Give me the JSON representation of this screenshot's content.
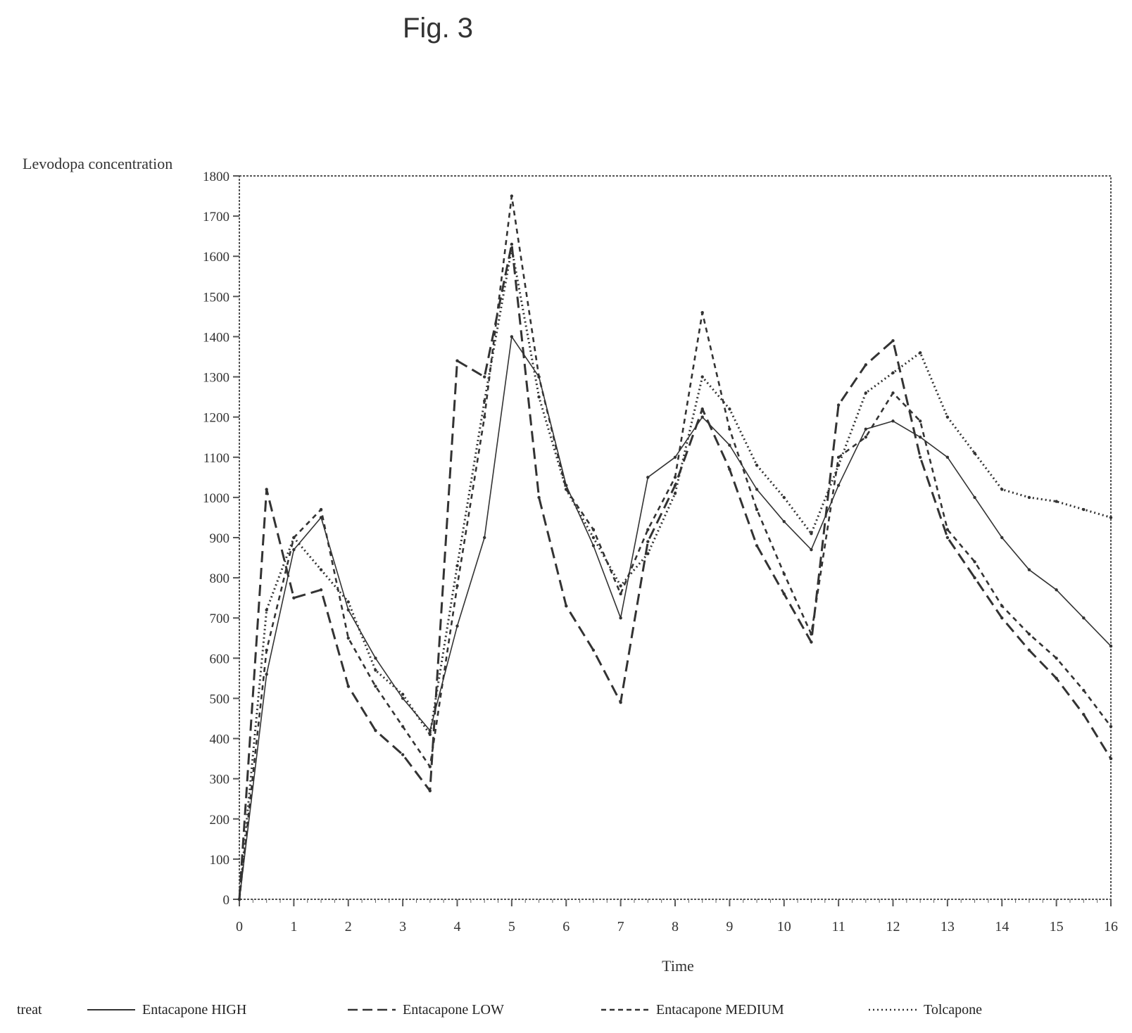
{
  "figure_title": "Fig. 3",
  "legend_heading": "treat",
  "chart_data": {
    "type": "line",
    "title": "",
    "ylabel": "Levodopa concentration",
    "xlabel": "Time",
    "xlim": [
      0,
      16
    ],
    "ylim": [
      0,
      1800
    ],
    "x_ticks": [
      0,
      1,
      2,
      3,
      4,
      5,
      6,
      7,
      8,
      9,
      10,
      11,
      12,
      13,
      14,
      15,
      16
    ],
    "y_ticks": [
      0,
      100,
      200,
      300,
      400,
      500,
      600,
      700,
      800,
      900,
      1000,
      1100,
      1200,
      1300,
      1400,
      1500,
      1600,
      1700,
      1800
    ],
    "grid": false,
    "legend_position": "bottom",
    "series": [
      {
        "name": "Entacapone HIGH",
        "style": "solid",
        "x": [
          0,
          0.5,
          1,
          1.5,
          2,
          2.5,
          3,
          3.5,
          4,
          4.5,
          5,
          5.5,
          6,
          6.5,
          7,
          7.5,
          8,
          8.5,
          9,
          9.5,
          10,
          10.5,
          11,
          11.5,
          12,
          12.5,
          13,
          13.5,
          14,
          14.5,
          15,
          15.5,
          16
        ],
        "values": [
          0,
          560,
          870,
          950,
          720,
          600,
          500,
          420,
          680,
          900,
          1400,
          1300,
          1030,
          880,
          700,
          1050,
          1100,
          1200,
          1130,
          1020,
          940,
          870,
          1030,
          1170,
          1190,
          1150,
          1100,
          1000,
          900,
          820,
          770,
          700,
          630
        ]
      },
      {
        "name": "Entacapone LOW",
        "style": "long-dash",
        "x": [
          0,
          0.5,
          1,
          1.5,
          2,
          2.5,
          3,
          3.5,
          4,
          4.5,
          5,
          5.5,
          6,
          6.5,
          7,
          7.5,
          8,
          8.5,
          9,
          9.5,
          10,
          10.5,
          11,
          11.5,
          12,
          12.5,
          13,
          13.5,
          14,
          14.5,
          15,
          15.5,
          16
        ],
        "values": [
          0,
          1020,
          750,
          770,
          530,
          420,
          360,
          270,
          1340,
          1300,
          1630,
          1000,
          730,
          620,
          490,
          890,
          1030,
          1220,
          1070,
          880,
          760,
          640,
          1230,
          1330,
          1390,
          1100,
          900,
          800,
          700,
          620,
          550,
          460,
          350
        ]
      },
      {
        "name": "Entacapone MEDIUM",
        "style": "short-dash",
        "x": [
          0,
          0.5,
          1,
          1.5,
          2,
          2.5,
          3,
          3.5,
          4,
          4.5,
          5,
          5.5,
          6,
          6.5,
          7,
          7.5,
          8,
          8.5,
          9,
          9.5,
          10,
          10.5,
          11,
          11.5,
          12,
          12.5,
          13,
          13.5,
          14,
          14.5,
          15,
          15.5,
          16
        ],
        "values": [
          0,
          620,
          900,
          970,
          650,
          530,
          430,
          330,
          780,
          1200,
          1750,
          1300,
          1020,
          920,
          760,
          920,
          1050,
          1460,
          1170,
          970,
          810,
          660,
          1100,
          1150,
          1260,
          1190,
          920,
          840,
          730,
          660,
          600,
          520,
          430
        ]
      },
      {
        "name": "Tolcapone",
        "style": "dotted",
        "x": [
          0,
          0.5,
          1,
          1.5,
          2,
          2.5,
          3,
          3.5,
          4,
          4.5,
          5,
          5.5,
          6,
          6.5,
          7,
          7.5,
          8,
          8.5,
          9,
          9.5,
          10,
          10.5,
          11,
          11.5,
          12,
          12.5,
          13,
          13.5,
          14,
          14.5,
          15,
          15.5,
          16
        ],
        "values": [
          0,
          720,
          900,
          820,
          740,
          570,
          510,
          410,
          830,
          1240,
          1620,
          1250,
          1020,
          900,
          780,
          860,
          1010,
          1300,
          1220,
          1080,
          1000,
          910,
          1080,
          1260,
          1310,
          1360,
          1200,
          1110,
          1020,
          1000,
          990,
          970,
          950
        ]
      }
    ]
  }
}
